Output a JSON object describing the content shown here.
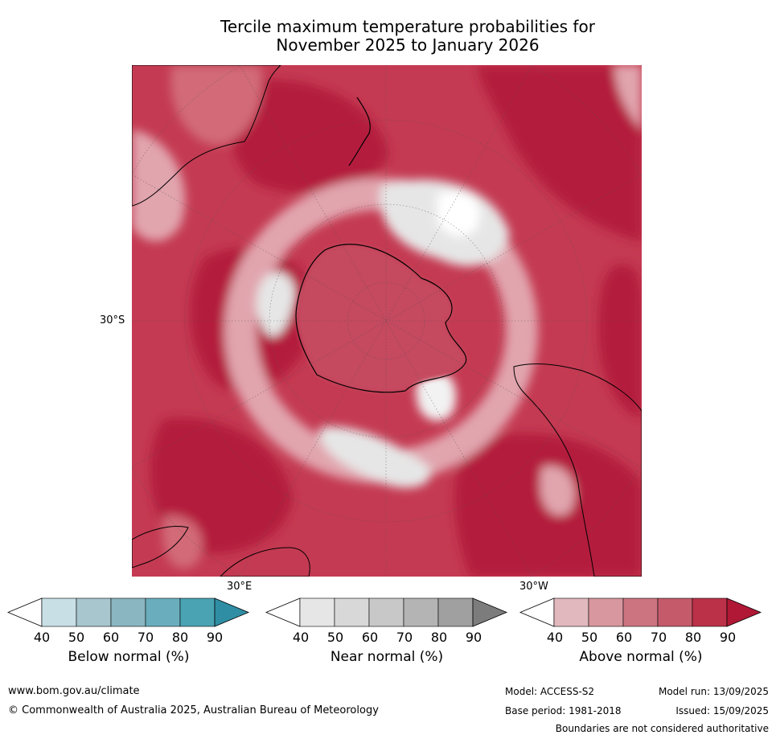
{
  "title": {
    "line1": "Tercile maximum temperature probabilities for",
    "line2": "November 2025 to January 2026"
  },
  "map": {
    "projection": "south-polar stereographic",
    "lat_label": "30°S",
    "lon_label_east": "30°E",
    "lon_label_west": "30°W",
    "dominant_category": "Above normal",
    "colors": {
      "ocean_base": "#c43a52",
      "strong_above": "#b41c3c",
      "mid_above": "#d26a78",
      "light_above": "#e1a5ae",
      "near_normal": "#e6e6e6",
      "white": "#ffffff",
      "coast": "#000000"
    }
  },
  "colorbars": [
    {
      "label": "Below normal (%)",
      "ticks": [
        "40",
        "50",
        "60",
        "70",
        "80",
        "90"
      ],
      "colors": [
        "#ffffff",
        "#c8dfe6",
        "#a8c6cd",
        "#8ab6c1",
        "#6aaebe",
        "#4aa3b3",
        "#2f8ea3"
      ]
    },
    {
      "label": "Near normal (%)",
      "ticks": [
        "40",
        "50",
        "60",
        "70",
        "80",
        "90"
      ],
      "colors": [
        "#ffffff",
        "#e6e6e6",
        "#d8d8d8",
        "#c8c8c8",
        "#b4b4b4",
        "#a0a0a0",
        "#7c7c7c"
      ]
    },
    {
      "label": "Above normal (%)",
      "ticks": [
        "40",
        "50",
        "60",
        "70",
        "80",
        "90"
      ],
      "colors": [
        "#ffffff",
        "#e1b8bd",
        "#d8979f",
        "#cc7480",
        "#c45a6a",
        "#bb3148",
        "#b01836"
      ]
    }
  ],
  "footer": {
    "website": "www.bom.gov.au/climate",
    "copyright": "© Commonwealth of Australia 2025, Australian Bureau of Meteorology",
    "model": "Model: ACCESS-S2",
    "model_run": "Model run: 13/09/2025",
    "base_period": "Base period: 1981-2018",
    "issued": "Issued: 15/09/2025",
    "disclaimer": "Boundaries are not considered authoritative"
  }
}
